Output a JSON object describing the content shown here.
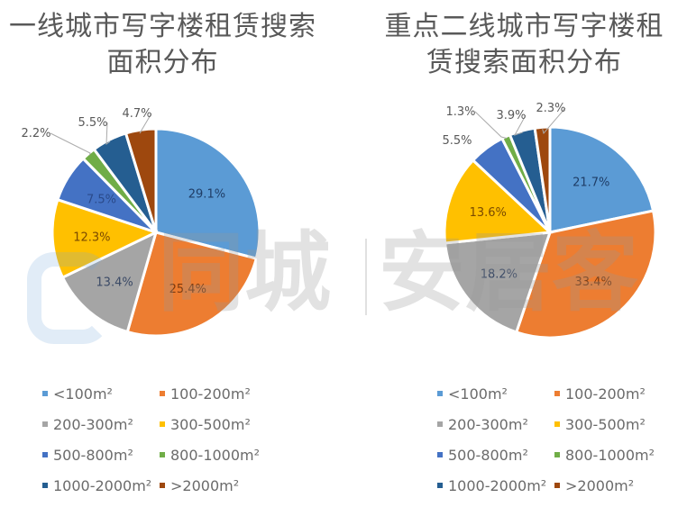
{
  "watermark": {
    "text_left": "同城",
    "text_right": "安居客"
  },
  "legend_labels": [
    "<100m²",
    "100-200m²",
    "200-300m²",
    "300-500m²",
    "500-800m²",
    "800-1000m²",
    "1000-2000m²",
    ">2000m²"
  ],
  "colors": [
    "#5b9bd5",
    "#ed7d31",
    "#a5a5a5",
    "#ffc000",
    "#4472c4",
    "#70ad47",
    "#255e91",
    "#9e480e"
  ],
  "charts": [
    {
      "title_line1": "一线城市写字楼租赁搜索",
      "title_line2": "面积分布"
    },
    {
      "title_line1": "重点二线城市写字楼租",
      "title_line2": "赁搜索面积分布"
    }
  ],
  "chart_data": [
    {
      "type": "pie",
      "title": "一线城市写字楼租赁搜索面积分布",
      "categories": [
        "<100m²",
        "100-200m²",
        "200-300m²",
        "300-500m²",
        "500-800m²",
        "800-1000m²",
        "1000-2000m²",
        ">2000m²"
      ],
      "values": [
        29.1,
        25.4,
        13.4,
        12.3,
        7.5,
        2.2,
        5.5,
        4.7
      ],
      "labels": [
        "29.1%",
        "25.4%",
        "13.4%",
        "12.3%",
        "7.5%",
        "2.2%",
        "5.5%",
        "4.7%"
      ],
      "legend_position": "bottom",
      "start_angle": "12 o'clock, clockwise"
    },
    {
      "type": "pie",
      "title": "重点二线城市写字楼租赁搜索面积分布",
      "categories": [
        "<100m²",
        "100-200m²",
        "200-300m²",
        "300-500m²",
        "500-800m²",
        "800-1000m²",
        "1000-2000m²",
        ">2000m²"
      ],
      "values": [
        21.7,
        33.4,
        18.2,
        13.6,
        5.5,
        1.3,
        3.9,
        2.3
      ],
      "labels": [
        "21.7%",
        "33.4%",
        "18.2%",
        "13.6%",
        "5.5%",
        "1.3%",
        "3.9%",
        "2.3%"
      ],
      "legend_position": "bottom",
      "start_angle": "12 o'clock, clockwise"
    }
  ]
}
